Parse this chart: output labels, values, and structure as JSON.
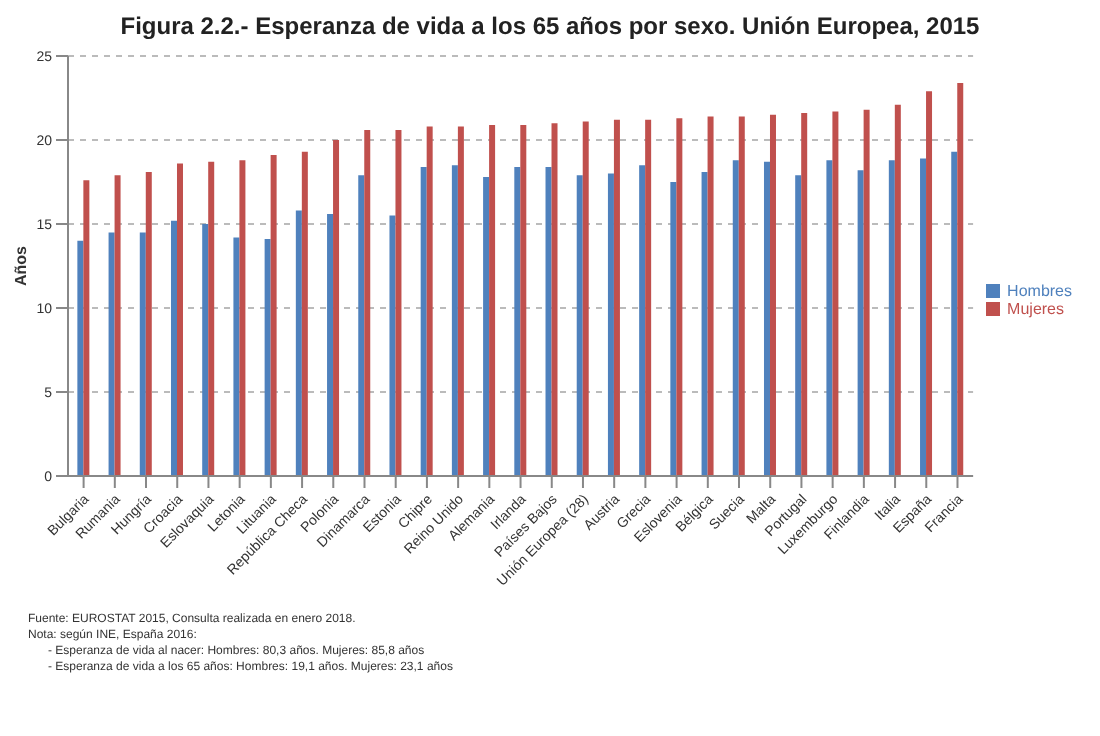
{
  "chart_data": {
    "type": "bar",
    "title": "Figura 2.2.- Esperanza de vida a los 65 años por sexo. Unión Europea, 2015",
    "ylabel": "Años",
    "categories": [
      "Bulgaria",
      "Rumania",
      "Hungría",
      "Croacia",
      "Eslovaquia",
      "Letonia",
      "Lituania",
      "República Checa",
      "Polonia",
      "Dinamarca",
      "Estonia",
      "Chipre",
      "Reino Unido",
      "Alemania",
      "Irlanda",
      "Países Bajos",
      "Unión Europea (28)",
      "Austria",
      "Grecia",
      "Eslovenia",
      "Bélgica",
      "Suecia",
      "Malta",
      "Portugal",
      "Luxemburgo",
      "Finlandia",
      "Italia",
      "España",
      "Francia"
    ],
    "series": [
      {
        "name": "Hombres",
        "color": "#4f81bd",
        "values": [
          14.0,
          14.5,
          14.5,
          15.2,
          15.0,
          14.2,
          14.1,
          15.8,
          15.6,
          17.9,
          15.5,
          18.4,
          18.5,
          17.8,
          18.4,
          18.4,
          17.9,
          18.0,
          18.5,
          17.5,
          18.1,
          18.8,
          18.7,
          17.9,
          18.8,
          18.2,
          18.8,
          18.9,
          19.3
        ]
      },
      {
        "name": "Mujeres",
        "color": "#c0504d",
        "values": [
          17.6,
          17.9,
          18.1,
          18.6,
          18.7,
          18.8,
          19.1,
          19.3,
          20.0,
          20.6,
          20.6,
          20.8,
          20.8,
          20.9,
          20.9,
          21.0,
          21.1,
          21.2,
          21.2,
          21.3,
          21.4,
          21.4,
          21.5,
          21.6,
          21.7,
          21.8,
          22.1,
          22.9,
          23.4
        ]
      }
    ],
    "ylim": [
      0,
      25
    ],
    "yticks": [
      0,
      5,
      10,
      15,
      20,
      25
    ],
    "grid": "y",
    "legend": "right",
    "annotations": [
      "Fuente: EUROSTAT 2015, Consulta realizada en enero 2018.",
      "Nota: según INE, España 2016:",
      "- Esperanza de vida al nacer: Hombres: 80,3 años. Mujeres: 85,8 años",
      "- Esperanza de vida a los 65 años: Hombres: 19,1 años. Mujeres: 23,1 años"
    ]
  }
}
